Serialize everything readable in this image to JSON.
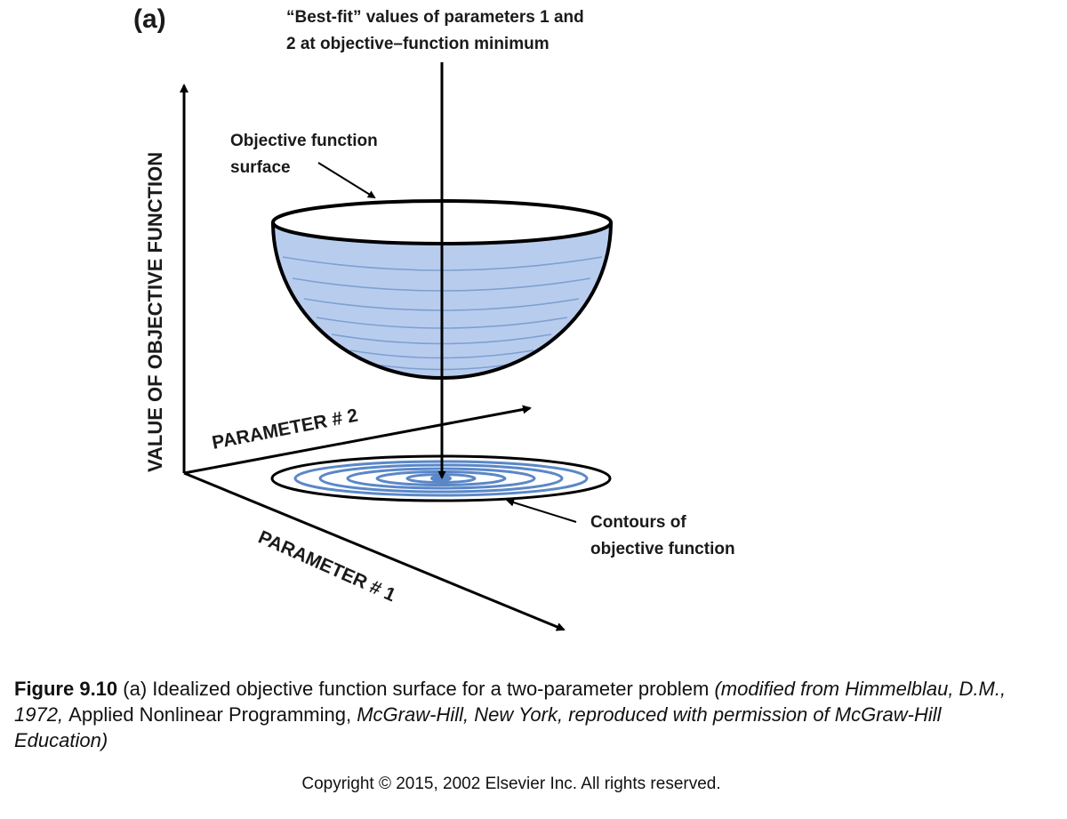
{
  "diagram": {
    "panel_label": "(a)",
    "best_fit_label": [
      "“Best-fit” values of parameters 1 and",
      "2 at objective–function minimum"
    ],
    "surface_label": [
      "Objective function",
      "surface"
    ],
    "contours_label": [
      "Contours of",
      "objective function"
    ],
    "y_axis_label": "VALUE OF OBJECTIVE FUNCTION",
    "param2_label": "PARAMETER # 2",
    "param1_label": "PARAMETER # 1",
    "colors": {
      "bowl_fill": "#b8cdee",
      "bowl_lines": "#7f9fd0",
      "contour_ring": "#5a87c8",
      "ink": "#000000"
    }
  },
  "caption": {
    "figure_number": "Figure 9.10",
    "text_1": " (a) Idealized objective function surface for a two-parameter problem ",
    "italic_1": "(modified from Himmelblau, D.M., 1972, ",
    "text_2": "Applied Nonlinear Programming, ",
    "italic_2": "McGraw-Hill, New York, reproduced with permission of McGraw-Hill Education)"
  },
  "copyright": "Copyright © 2015, 2002 Elsevier Inc. All rights reserved."
}
